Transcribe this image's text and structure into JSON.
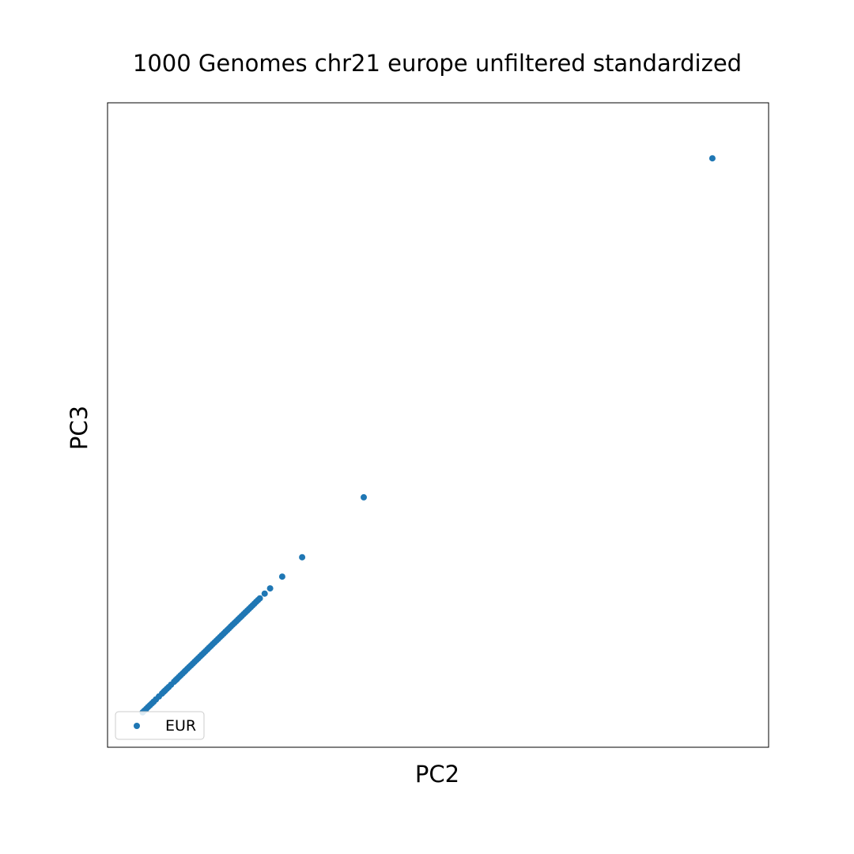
{
  "chart_data": {
    "type": "scatter",
    "title": "1000 Genomes chr21 europe unfiltered standardized",
    "xlabel": "PC2",
    "ylabel": "PC3",
    "xticks": false,
    "yticks": false,
    "grid": false,
    "xlim": [
      0,
      100
    ],
    "ylim": [
      0,
      100
    ],
    "legend": {
      "position": "lower-left"
    },
    "series": [
      {
        "name": "EUR",
        "color": "#1f77b4",
        "points": [
          [
            95.4,
            95.4
          ],
          [
            37.7,
            37.7
          ],
          [
            27.5,
            27.5
          ],
          [
            24.2,
            24.2
          ],
          [
            22.2,
            22.2
          ],
          [
            21.3,
            21.3
          ],
          [
            20.5,
            20.5
          ],
          [
            20.2,
            20.2
          ],
          [
            19.9,
            19.9
          ],
          [
            19.6,
            19.6
          ],
          [
            19.3,
            19.3
          ],
          [
            19.0,
            19.0
          ],
          [
            18.7,
            18.7
          ],
          [
            18.4,
            18.4
          ],
          [
            18.1,
            18.1
          ],
          [
            17.8,
            17.8
          ],
          [
            17.5,
            17.5
          ],
          [
            17.2,
            17.2
          ],
          [
            16.9,
            16.9
          ],
          [
            16.6,
            16.6
          ],
          [
            16.3,
            16.3
          ],
          [
            16.0,
            16.0
          ],
          [
            15.7,
            15.7
          ],
          [
            15.4,
            15.4
          ],
          [
            15.1,
            15.1
          ],
          [
            14.8,
            14.8
          ],
          [
            14.5,
            14.5
          ],
          [
            14.2,
            14.2
          ],
          [
            13.9,
            13.9
          ],
          [
            13.6,
            13.6
          ],
          [
            13.3,
            13.3
          ],
          [
            13.0,
            13.0
          ],
          [
            12.7,
            12.7
          ],
          [
            12.4,
            12.4
          ],
          [
            12.1,
            12.1
          ],
          [
            11.8,
            11.8
          ],
          [
            11.5,
            11.5
          ],
          [
            11.2,
            11.2
          ],
          [
            10.9,
            10.9
          ],
          [
            10.6,
            10.6
          ],
          [
            10.3,
            10.3
          ],
          [
            10.0,
            10.0
          ],
          [
            9.7,
            9.7
          ],
          [
            9.4,
            9.4
          ],
          [
            9.1,
            9.1
          ],
          [
            8.8,
            8.8
          ],
          [
            8.5,
            8.5
          ],
          [
            8.2,
            8.2
          ],
          [
            8.0,
            8.0
          ],
          [
            7.7,
            7.7
          ],
          [
            7.4,
            7.4
          ],
          [
            7.1,
            7.1
          ],
          [
            6.8,
            6.8
          ],
          [
            6.6,
            6.6
          ],
          [
            6.3,
            6.3
          ],
          [
            5.8,
            5.8
          ],
          [
            5.4,
            5.4
          ],
          [
            5.1,
            5.1
          ],
          [
            4.8,
            4.8
          ],
          [
            4.6,
            4.6
          ],
          [
            4.3,
            4.3
          ],
          [
            3.8,
            3.8
          ],
          [
            3.3,
            3.3
          ],
          [
            2.9,
            2.9
          ],
          [
            2.6,
            2.6
          ],
          [
            2.3,
            2.3
          ],
          [
            2.0,
            2.0
          ],
          [
            1.7,
            1.7
          ],
          [
            1.4,
            1.4
          ],
          [
            1.1,
            1.1
          ]
        ]
      }
    ]
  }
}
